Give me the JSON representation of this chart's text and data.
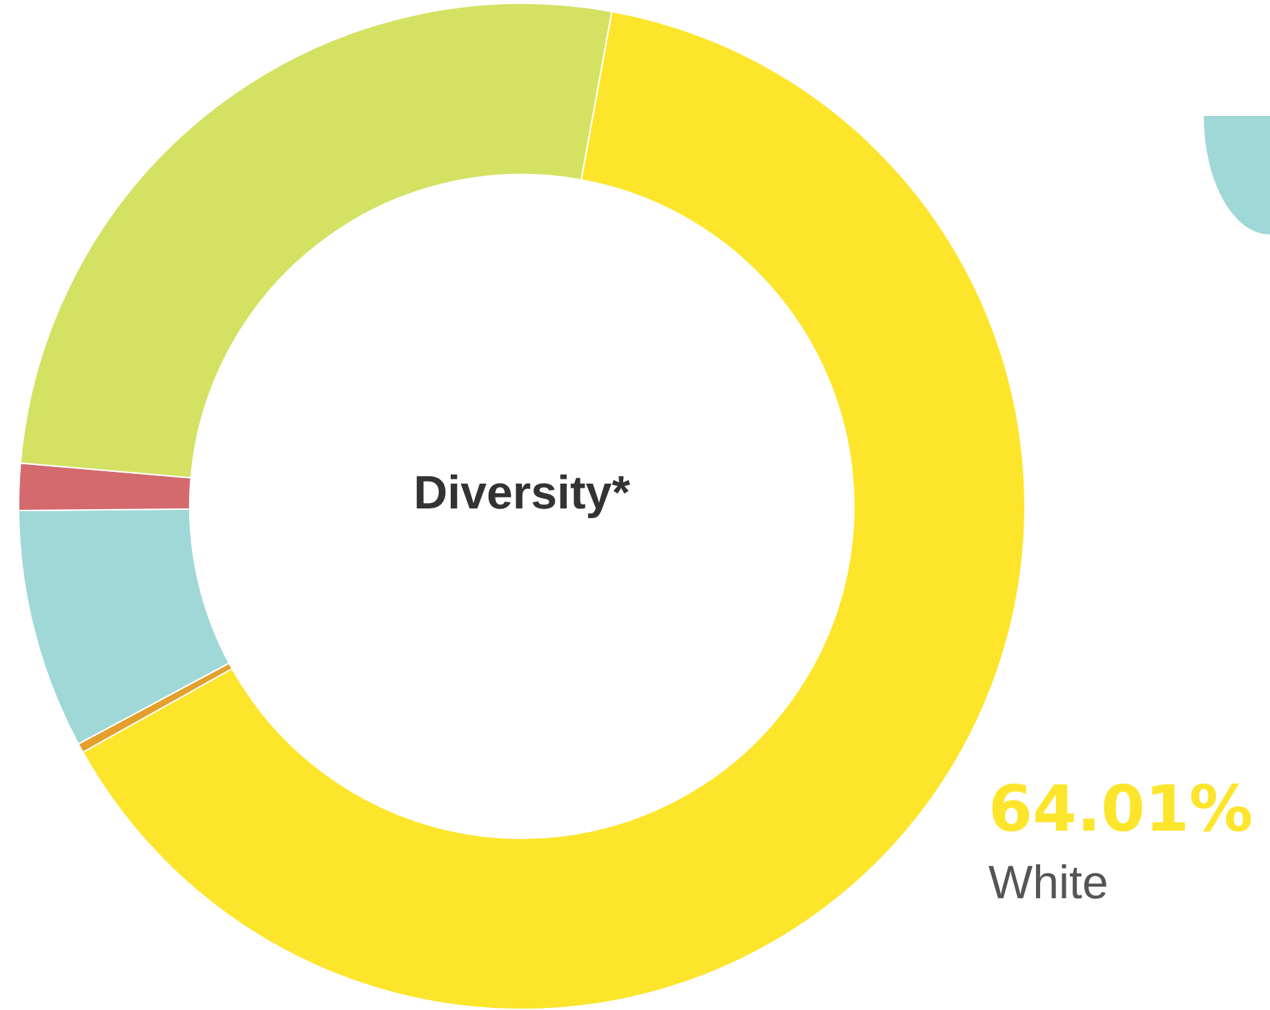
{
  "chart_data": {
    "type": "donut",
    "title": "Diversity*",
    "categories": [
      "White",
      null,
      null,
      null,
      null
    ],
    "values": [
      64.01,
      0.3,
      7.7,
      1.5,
      26.49
    ],
    "colors": [
      "#fde52c",
      "#e3a02c",
      "#a0d8d8",
      "#d46a6d",
      "#d4e264"
    ],
    "value_labels": [
      "64.01%",
      null,
      null,
      null,
      null
    ],
    "legend": false
  }
}
